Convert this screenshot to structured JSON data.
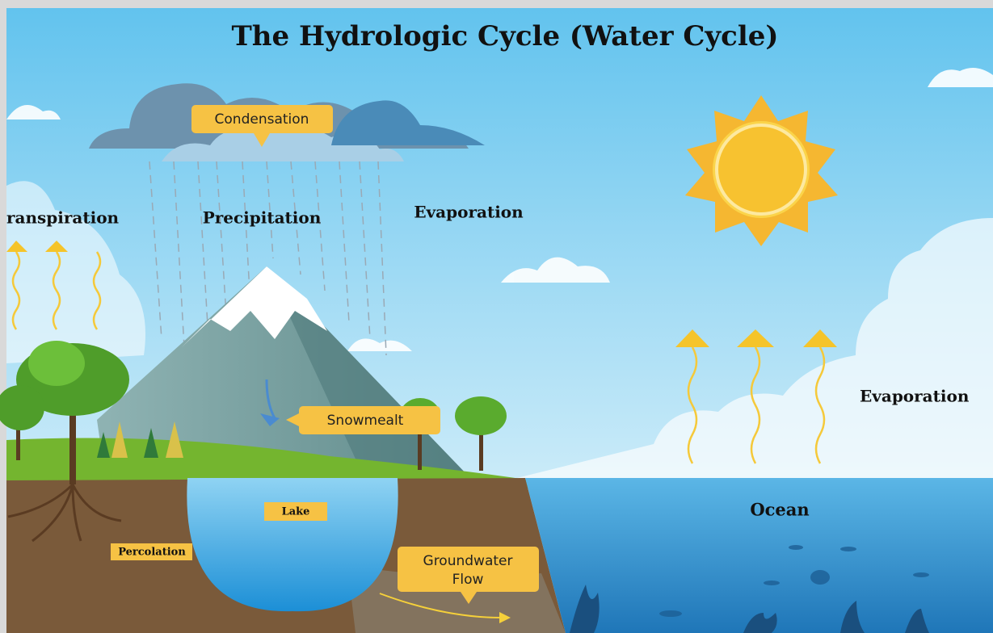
{
  "title": "The Hydrologic Cycle (Water Cycle)",
  "labels": {
    "condensation": "Condensation",
    "transpiration": "ranspiration",
    "precipitation": "Precipitation",
    "evaporation_sky": "Evaporation",
    "evaporation_ocean": "Evaporation",
    "snowmelt": "Snowmealt",
    "lake": "Lake",
    "percolation": "Percolation",
    "groundwater_flow": [
      "Groundwater",
      "Flow"
    ],
    "ocean": "Ocean"
  }
}
